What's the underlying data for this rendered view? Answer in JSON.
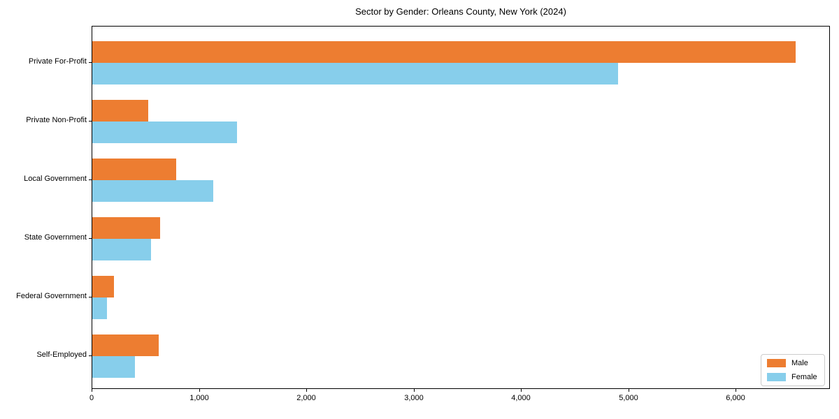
{
  "chart_data": {
    "type": "bar",
    "orientation": "horizontal",
    "title": "Sector by Gender: Orleans County, New York (2024)",
    "categories": [
      "Private For-Profit",
      "Private Non-Profit",
      "Local Government",
      "State Government",
      "Federal Government",
      "Self-Employed"
    ],
    "series": [
      {
        "name": "Male",
        "color": "#ED7D31",
        "values": [
          6550,
          520,
          780,
          630,
          200,
          620
        ]
      },
      {
        "name": "Female",
        "color": "#87CEEB",
        "values": [
          4900,
          1350,
          1130,
          550,
          140,
          400
        ]
      }
    ],
    "xlabel": "",
    "ylabel": "",
    "xlim": [
      0,
      6878
    ],
    "xticks": [
      0,
      1000,
      2000,
      3000,
      4000,
      5000,
      6000
    ],
    "xtick_labels": [
      "0",
      "1,000",
      "2,000",
      "3,000",
      "4,000",
      "5,000",
      "6,000"
    ],
    "grid": false,
    "legend": {
      "position": "lower right"
    }
  }
}
